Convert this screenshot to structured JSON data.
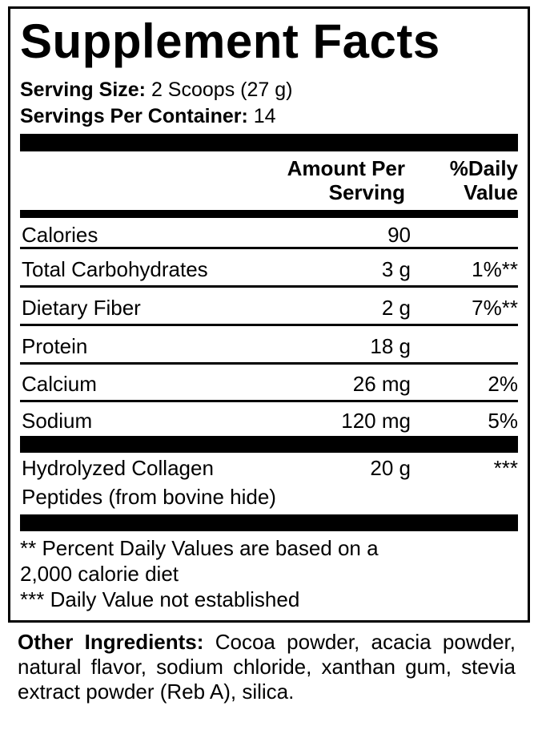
{
  "title": "Supplement Facts",
  "serving_size": {
    "label": "Serving Size:",
    "value": "2 Scoops (27 g)"
  },
  "servings_per_container": {
    "label": "Servings Per Container:",
    "value": "14"
  },
  "headers": {
    "amount_line1": "Amount Per",
    "amount_line2": "Serving",
    "dv_line1": "%Daily",
    "dv_line2": "Value"
  },
  "rows": [
    {
      "name": "Calories",
      "amount": "90",
      "dv": ""
    },
    {
      "name": "Total Carbohydrates",
      "amount": "3 g",
      "dv": "1%**"
    },
    {
      "name": "Dietary Fiber",
      "amount": "2 g",
      "dv": "7%**"
    },
    {
      "name": "Protein",
      "amount": "18 g",
      "dv": ""
    },
    {
      "name": "Calcium",
      "amount": "26 mg",
      "dv": "2%"
    },
    {
      "name": "Sodium",
      "amount": "120 mg",
      "dv": "5%"
    }
  ],
  "collagen": {
    "name_line1": "Hydrolyzed Collagen",
    "name_line2": "Peptides (from bovine hide)",
    "amount": "20 g",
    "dv": "***"
  },
  "footnotes": {
    "line1": "** Percent Daily Values are based on a",
    "line2": "2,000 calorie diet",
    "line3": "*** Daily Value not established"
  },
  "other_ingredients": {
    "label": "Other Ingredients:",
    "text": " Cocoa powder, acacia powder, natural flavor, sodium chloride, xanthan gum, stevia extract powder (Reb A), silica."
  }
}
